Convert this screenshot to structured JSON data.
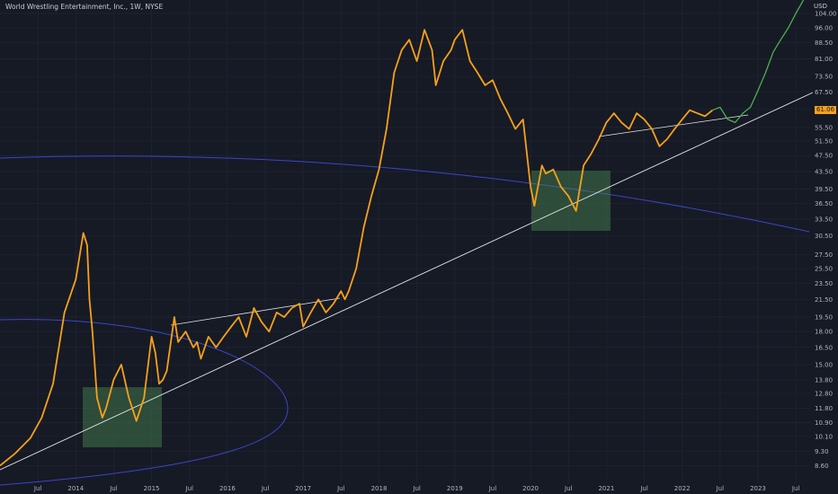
{
  "title": "World Wrestling Entertainment, Inc., 1W, NYSE",
  "currency_label": "USD",
  "last_price_label": "61.06",
  "colors": {
    "background": "#161a25",
    "price_line": "#f7a11a",
    "projection_line": "#4caf50",
    "trendline": "#e6e6e6",
    "arc": "#3d45c8",
    "box_fill": "#4a8a52"
  },
  "chart_data": {
    "type": "line",
    "scale": "log",
    "ylim": [
      8.2,
      112
    ],
    "y_ticks": [
      "104.00",
      "96.00",
      "88.50",
      "81.00",
      "73.50",
      "67.50",
      "61.50",
      "55.50",
      "51.50",
      "47.50",
      "43.50",
      "39.50",
      "36.50",
      "33.50",
      "30.50",
      "27.50",
      "25.50",
      "23.50",
      "21.50",
      "19.50",
      "18.00",
      "16.50",
      "15.00",
      "13.80",
      "12.80",
      "11.80",
      "10.90",
      "10.10",
      "9.30",
      "8.60"
    ],
    "x_ticks": [
      "Jul",
      "2014",
      "Jul",
      "2015",
      "Jul",
      "2016",
      "Jul",
      "2017",
      "Jul",
      "2018",
      "Jul",
      "2019",
      "Jul",
      "2020",
      "Jul",
      "2021",
      "Jul",
      "2022",
      "Jul",
      "2023",
      "Jul"
    ],
    "series": [
      {
        "role": "price",
        "x": [
          2013.0,
          2013.2,
          2013.4,
          2013.55,
          2013.7,
          2013.85,
          2014.0,
          2014.1,
          2014.15,
          2014.18,
          2014.22,
          2014.28,
          2014.35,
          2014.4,
          2014.5,
          2014.6,
          2014.7,
          2014.8,
          2014.9,
          2015.0,
          2015.05,
          2015.1,
          2015.15,
          2015.2,
          2015.3,
          2015.35,
          2015.45,
          2015.55,
          2015.6,
          2015.65,
          2015.75,
          2015.85,
          2015.95,
          2016.05,
          2016.15,
          2016.25,
          2016.35,
          2016.45,
          2016.55,
          2016.65,
          2016.75,
          2016.85,
          2016.95,
          2017.0,
          2017.1,
          2017.2,
          2017.3,
          2017.4,
          2017.5,
          2017.55,
          2017.6,
          2017.7,
          2017.8,
          2017.9,
          2018.0,
          2018.1,
          2018.2,
          2018.3,
          2018.4,
          2018.5,
          2018.6,
          2018.7,
          2018.75,
          2018.85,
          2018.95,
          2019.0,
          2019.1,
          2019.2,
          2019.3,
          2019.4,
          2019.5,
          2019.6,
          2019.7,
          2019.8,
          2019.9,
          2020.0,
          2020.05,
          2020.15,
          2020.2,
          2020.3,
          2020.4,
          2020.5,
          2020.6,
          2020.7,
          2020.8,
          2020.9,
          2021.0,
          2021.1,
          2021.2,
          2021.3,
          2021.4,
          2021.5,
          2021.6,
          2021.7,
          2021.8,
          2021.9,
          2022.0,
          2022.1,
          2022.2,
          2022.3,
          2022.4
        ],
        "y": [
          8.6,
          9.2,
          10.0,
          11.2,
          13.5,
          20.0,
          24.0,
          31.0,
          29.0,
          21.5,
          18.0,
          12.5,
          11.2,
          11.8,
          13.8,
          15.0,
          12.5,
          11.0,
          12.5,
          17.5,
          16.0,
          13.5,
          13.8,
          14.5,
          19.5,
          17.0,
          18.0,
          16.5,
          17.0,
          15.5,
          17.5,
          16.5,
          17.5,
          18.5,
          19.5,
          17.5,
          20.5,
          19.0,
          18.0,
          20.0,
          19.5,
          20.5,
          21.0,
          18.5,
          20.0,
          21.5,
          20.0,
          21.0,
          22.5,
          21.5,
          22.5,
          25.5,
          32.0,
          38.0,
          44.0,
          55.0,
          75.0,
          85.0,
          90.0,
          80.0,
          95.0,
          85.0,
          70.0,
          80.0,
          85.0,
          90.0,
          95.0,
          80.0,
          75.0,
          70.0,
          72.0,
          65.0,
          60.0,
          55.0,
          58.0,
          40.0,
          36.0,
          45.0,
          43.0,
          44.0,
          40.0,
          38.0,
          35.0,
          45.0,
          48.0,
          52.0,
          57.0,
          60.0,
          57.0,
          55.0,
          60.0,
          58.0,
          55.0,
          50.0,
          52.0,
          55.0,
          58.0,
          61.0,
          60.0,
          59.0,
          61.0
        ]
      },
      {
        "role": "projection",
        "x": [
          2022.4,
          2022.5,
          2022.6,
          2022.7,
          2022.8,
          2022.9,
          2023.0,
          2023.1,
          2023.2,
          2023.3,
          2023.4,
          2023.5,
          2023.6
        ],
        "y": [
          61.0,
          62.0,
          58.0,
          57.0,
          60.0,
          62.0,
          68.0,
          75.0,
          84.0,
          90.0,
          96.0,
          104.0,
          112.0
        ]
      }
    ]
  }
}
